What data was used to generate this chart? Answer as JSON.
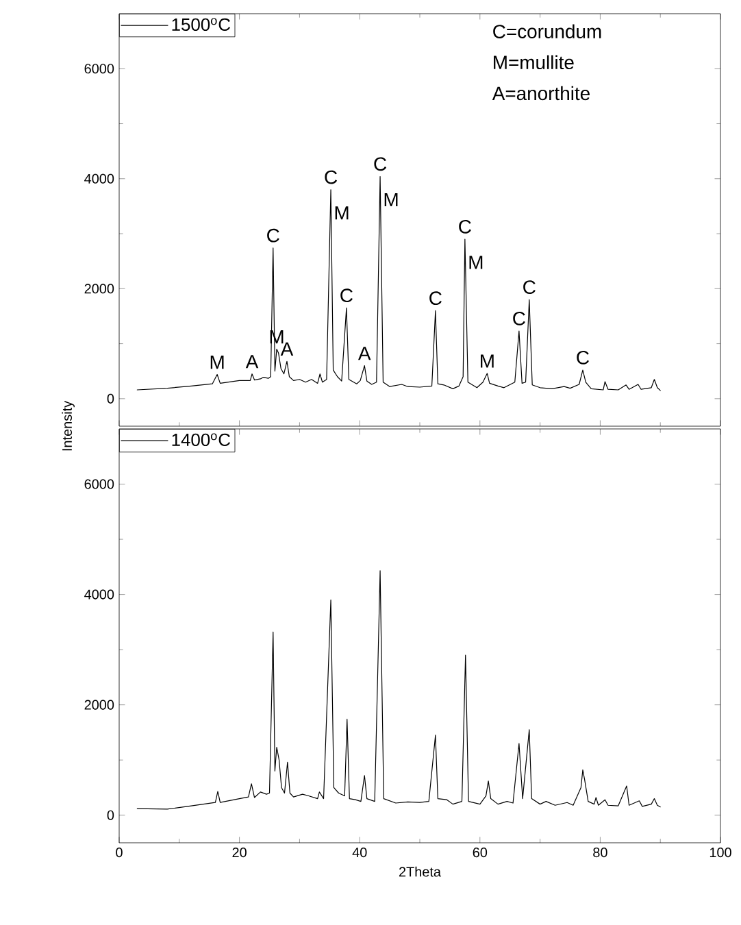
{
  "chart_data": [
    {
      "type": "line",
      "ylabel": "Intensity",
      "xlim": [
        0,
        100
      ],
      "ylim": [
        -500,
        7000
      ],
      "xticks": [
        0,
        20,
        40,
        60,
        80,
        100
      ],
      "yticks": [
        0,
        2000,
        4000,
        6000
      ],
      "tick_labels": "y",
      "legend": "top left",
      "series": [
        {
          "name": "1500$^{o}$C",
          "color": "#000000",
          "x": [
            3,
            8,
            12,
            15.5,
            16.3,
            16.8,
            20,
            21.8,
            22.1,
            22.5,
            23.5,
            24,
            24.8,
            25.2,
            25.6,
            25.9,
            26.2,
            26.5,
            26.9,
            27.4,
            27.9,
            28.3,
            29,
            30,
            31,
            32,
            33,
            33.4,
            33.8,
            34.5,
            35.2,
            35.6,
            36.3,
            37,
            37.8,
            38.2,
            39.5,
            40.1,
            40.8,
            41.2,
            42,
            42.8,
            43.4,
            43.9,
            45,
            47,
            48,
            50,
            52,
            52.6,
            53,
            54,
            55.5,
            56.5,
            57.2,
            57.5,
            58,
            59.5,
            60.5,
            61.2,
            61.6,
            63,
            64,
            65.8,
            66.5,
            67,
            67.6,
            68.2,
            68.7,
            70,
            72,
            74,
            75,
            76.5,
            77.1,
            77.6,
            78.5,
            80.5,
            80.8,
            81.3,
            83,
            84.3,
            84.8,
            86.3,
            86.8,
            88.5,
            89,
            89.5,
            90
          ],
          "values": [
            160,
            190,
            230,
            270,
            440,
            280,
            330,
            330,
            450,
            340,
            360,
            390,
            370,
            400,
            2740,
            500,
            900,
            830,
            550,
            450,
            680,
            400,
            330,
            350,
            300,
            350,
            280,
            450,
            300,
            350,
            3800,
            520,
            400,
            320,
            1650,
            350,
            270,
            330,
            600,
            320,
            260,
            300,
            4040,
            300,
            220,
            260,
            220,
            210,
            230,
            1600,
            270,
            250,
            180,
            230,
            400,
            2900,
            300,
            200,
            300,
            460,
            280,
            230,
            200,
            300,
            1230,
            280,
            300,
            1800,
            250,
            200,
            180,
            220,
            190,
            260,
            520,
            300,
            180,
            160,
            310,
            170,
            160,
            250,
            170,
            260,
            170,
            200,
            350,
            200,
            150
          ]
        }
      ],
      "annotations": [
        "C=corundum",
        "M=mullite",
        "A=anorthite",
        {
          "text": "M",
          "x": 16.3,
          "y": 440
        },
        {
          "text": "A",
          "x": 22.1,
          "y": 450
        },
        {
          "text": "C",
          "x": 25.6,
          "y": 2740
        },
        {
          "text": "M",
          "x": 26.2,
          "y": 900
        },
        {
          "text": "A",
          "x": 27.9,
          "y": 680
        },
        {
          "text": "C",
          "x": 35.2,
          "y": 3800
        },
        {
          "text": "M",
          "x": 35.2,
          "y": 3800
        },
        {
          "text": "C",
          "x": 37.8,
          "y": 1650
        },
        {
          "text": "A",
          "x": 40.8,
          "y": 600
        },
        {
          "text": "C",
          "x": 43.4,
          "y": 4040
        },
        {
          "text": "M",
          "x": 43.4,
          "y": 4040
        },
        {
          "text": "C",
          "x": 52.6,
          "y": 1600
        },
        {
          "text": "C",
          "x": 57.5,
          "y": 2900
        },
        {
          "text": "M",
          "x": 57.5,
          "y": 2900
        },
        {
          "text": "M",
          "x": 61.2,
          "y": 460
        },
        {
          "text": "C",
          "x": 66.5,
          "y": 1230
        },
        {
          "text": "C",
          "x": 68.2,
          "y": 1800
        },
        {
          "text": "C",
          "x": 77.1,
          "y": 520
        }
      ]
    },
    {
      "type": "line",
      "xlabel": "2Theta",
      "xlim": [
        0,
        100
      ],
      "ylim": [
        -500,
        7000
      ],
      "xticks": [
        0,
        20,
        40,
        60,
        80,
        100
      ],
      "yticks": [
        0,
        2000,
        4000,
        6000
      ],
      "legend": "top left",
      "series": [
        {
          "name": "1400$^{o}$C",
          "color": "#000000",
          "x": [
            3,
            8,
            12,
            16,
            16.4,
            16.8,
            20,
            21.5,
            22,
            22.5,
            23.5,
            24.5,
            25,
            25.6,
            25.9,
            26.2,
            26.6,
            27,
            27.5,
            28,
            28.4,
            29,
            30.5,
            31.5,
            33,
            33.3,
            34,
            35.2,
            35.7,
            36.5,
            37.5,
            37.9,
            38.3,
            39.3,
            40.2,
            40.8,
            41.2,
            42.5,
            43.4,
            44,
            46,
            48,
            50,
            51.5,
            52.6,
            53,
            54.5,
            55.5,
            57,
            57.6,
            58.1,
            60,
            61,
            61.4,
            61.8,
            63,
            64.5,
            65.5,
            66.5,
            66.8,
            67.1,
            68.2,
            68.6,
            70,
            71,
            72.5,
            74.5,
            75.5,
            76.8,
            77.1,
            77.4,
            78,
            79,
            79.3,
            79.7,
            80.8,
            81.3,
            83,
            84.4,
            84.8,
            86.5,
            87,
            88.5,
            89,
            89.5,
            90
          ],
          "values": [
            120,
            110,
            170,
            230,
            430,
            230,
            300,
            330,
            570,
            320,
            420,
            380,
            400,
            3320,
            800,
            1230,
            1000,
            500,
            400,
            960,
            400,
            330,
            380,
            350,
            300,
            420,
            300,
            3900,
            500,
            400,
            350,
            1740,
            300,
            280,
            250,
            720,
            300,
            250,
            4430,
            300,
            220,
            240,
            230,
            250,
            1450,
            300,
            280,
            200,
            250,
            2900,
            250,
            200,
            350,
            620,
            300,
            200,
            250,
            220,
            1300,
            800,
            300,
            1550,
            300,
            200,
            250,
            180,
            230,
            180,
            500,
            820,
            650,
            250,
            200,
            320,
            180,
            280,
            180,
            170,
            530,
            180,
            260,
            160,
            200,
            300,
            180,
            150
          ]
        }
      ]
    }
  ]
}
